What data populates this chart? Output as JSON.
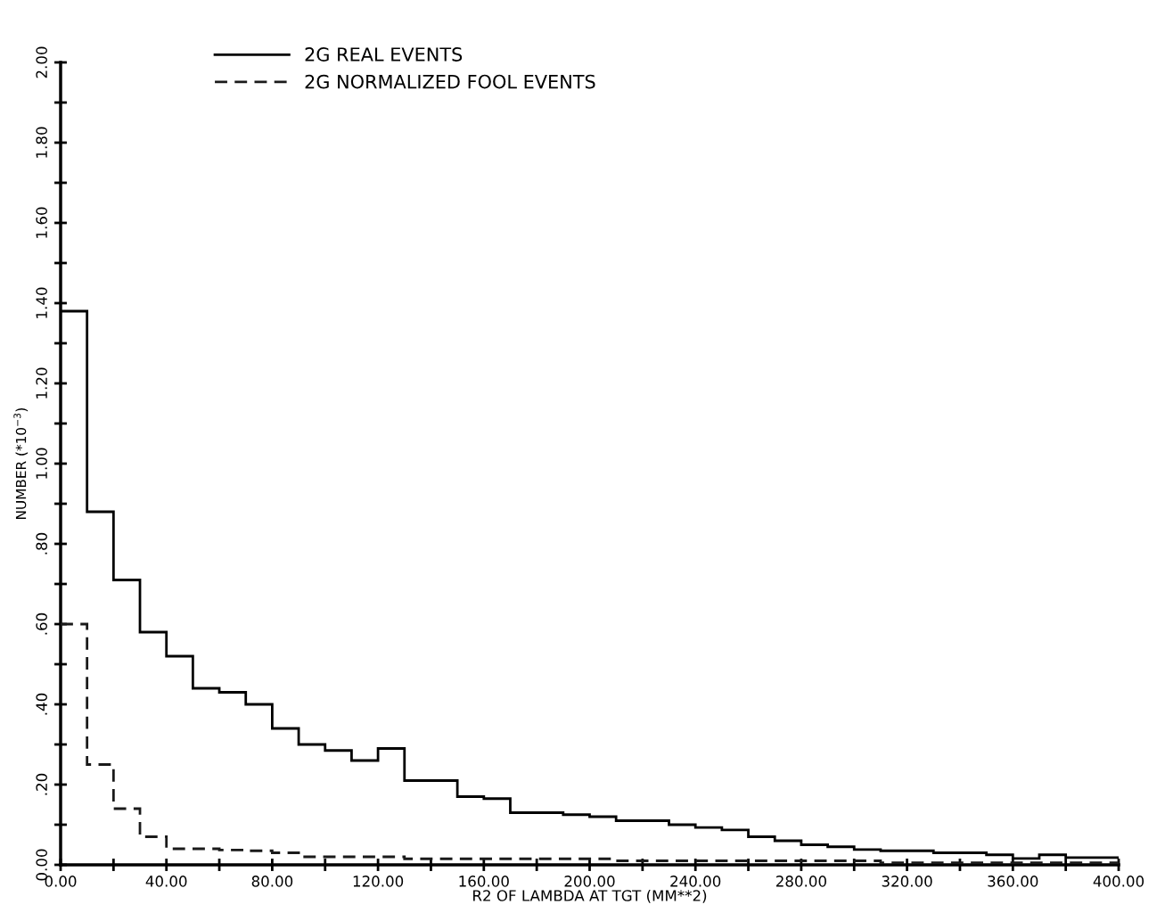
{
  "chart_data": {
    "type": "histogram",
    "xlabel": "R2 OF LAMBDA AT TGT (MM**2)",
    "ylabel": "NUMBER (*10$^{−3}$)",
    "bins": [
      0,
      10,
      20,
      30,
      40,
      50,
      60,
      70,
      80,
      90,
      100,
      110,
      120,
      130,
      140,
      150,
      160,
      170,
      180,
      190,
      200,
      210,
      220,
      230,
      240,
      250,
      260,
      270,
      280,
      290,
      300,
      310,
      320,
      330,
      340,
      350,
      360,
      370,
      380,
      390,
      400
    ],
    "series": [
      {
        "name": "2G REAL EVENTS",
        "color": "#000000",
        "line_style": "solid",
        "values": [
          1.38,
          0.88,
          0.71,
          0.58,
          0.52,
          0.44,
          0.43,
          0.4,
          0.34,
          0.3,
          0.285,
          0.26,
          0.29,
          0.21,
          0.21,
          0.17,
          0.165,
          0.13,
          0.13,
          0.125,
          0.12,
          0.11,
          0.11,
          0.1,
          0.093,
          0.087,
          0.07,
          0.06,
          0.05,
          0.045,
          0.038,
          0.035,
          0.035,
          0.03,
          0.03,
          0.025,
          0.016,
          0.025,
          0.018,
          0.018
        ]
      },
      {
        "name": "2G NORMALIZED FOOL EVENTS",
        "color": "#1a1a1a",
        "line_style": "dashed",
        "values": [
          0.6,
          0.25,
          0.14,
          0.07,
          0.04,
          0.04,
          0.037,
          0.035,
          0.03,
          0.02,
          0.02,
          0.02,
          0.02,
          0.015,
          0.015,
          0.015,
          0.015,
          0.015,
          0.015,
          0.015,
          0.015,
          0.01,
          0.01,
          0.01,
          0.01,
          0.01,
          0.01,
          0.01,
          0.01,
          0.01,
          0.01,
          0.005,
          0.005,
          0.005,
          0.005,
          0.005,
          0.005,
          0.005,
          0.005,
          0.005
        ]
      }
    ],
    "xlim": [
      0,
      400
    ],
    "ylim": [
      0,
      2.0
    ],
    "xticks": [
      {
        "value": 0,
        "label": "0.00"
      },
      {
        "value": 20,
        "label": null
      },
      {
        "value": 40,
        "label": "40.00"
      },
      {
        "value": 60,
        "label": null
      },
      {
        "value": 80,
        "label": "80.00"
      },
      {
        "value": 100,
        "label": null
      },
      {
        "value": 120,
        "label": "120.00"
      },
      {
        "value": 140,
        "label": null
      },
      {
        "value": 160,
        "label": "160.00"
      },
      {
        "value": 180,
        "label": null
      },
      {
        "value": 200,
        "label": "200.00"
      },
      {
        "value": 220,
        "label": null
      },
      {
        "value": 240,
        "label": "240.00"
      },
      {
        "value": 260,
        "label": null
      },
      {
        "value": 280,
        "label": "280.00"
      },
      {
        "value": 300,
        "label": null
      },
      {
        "value": 320,
        "label": "320.00"
      },
      {
        "value": 340,
        "label": null
      },
      {
        "value": 360,
        "label": "360.00"
      },
      {
        "value": 380,
        "label": null
      },
      {
        "value": 400,
        "label": "400.00"
      }
    ],
    "yticks": [
      {
        "value": 0,
        "label": "0.00"
      },
      {
        "value": 0.1,
        "label": null
      },
      {
        "value": 0.2,
        "label": ".20"
      },
      {
        "value": 0.3,
        "label": null
      },
      {
        "value": 0.4,
        "label": ".40"
      },
      {
        "value": 0.5,
        "label": null
      },
      {
        "value": 0.6,
        "label": ".60"
      },
      {
        "value": 0.7,
        "label": null
      },
      {
        "value": 0.8,
        "label": ".80"
      },
      {
        "value": 0.9,
        "label": null
      },
      {
        "value": 1.0,
        "label": "1.00"
      },
      {
        "value": 1.1,
        "label": null
      },
      {
        "value": 1.2,
        "label": "1.20"
      },
      {
        "value": 1.3,
        "label": null
      },
      {
        "value": 1.4,
        "label": "1.40"
      },
      {
        "value": 1.5,
        "label": null
      },
      {
        "value": 1.6,
        "label": "1.60"
      },
      {
        "value": 1.7,
        "label": null
      },
      {
        "value": 1.8,
        "label": "1.80"
      },
      {
        "value": 1.9,
        "label": null
      },
      {
        "value": 2.0,
        "label": "2.00"
      }
    ],
    "legend": "top left",
    "grid": false
  }
}
